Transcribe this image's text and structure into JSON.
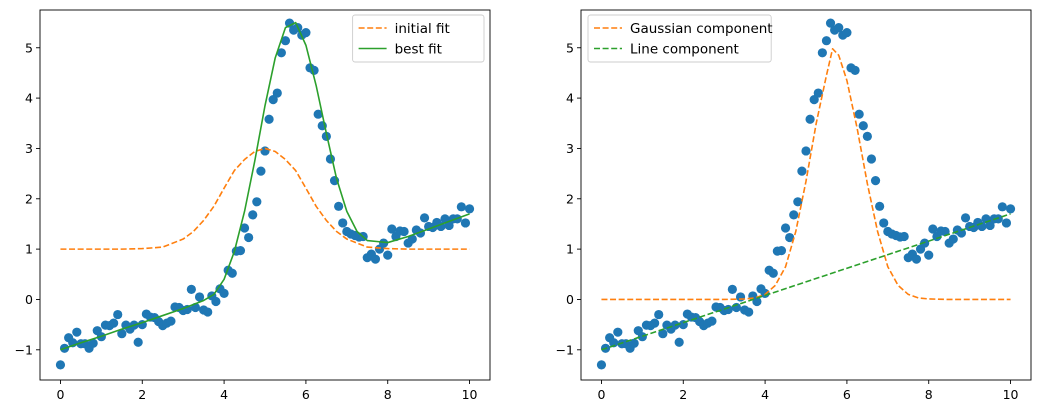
{
  "chart_data": [
    {
      "type": "scatter",
      "title": "",
      "xlabel": "",
      "ylabel": "",
      "xlim": [
        -0.5,
        10.5
      ],
      "ylim": [
        -1.6,
        5.75
      ],
      "xticks": [
        0,
        2,
        4,
        6,
        8,
        10
      ],
      "yticks": [
        -1,
        0,
        1,
        2,
        3,
        4,
        5
      ],
      "xtick_labels": [
        "0",
        "2",
        "4",
        "6",
        "8",
        "10"
      ],
      "ytick_labels": [
        "−1",
        "0",
        "1",
        "2",
        "3",
        "4",
        "5"
      ],
      "legend_position": "upper right",
      "grid": false,
      "points": {
        "color": "#1f77b4",
        "x": [
          0.0,
          0.1,
          0.2,
          0.3,
          0.4,
          0.5,
          0.6,
          0.7,
          0.8,
          0.9,
          1.0,
          1.1,
          1.2,
          1.3,
          1.4,
          1.5,
          1.6,
          1.7,
          1.8,
          1.9,
          2.0,
          2.1,
          2.2,
          2.3,
          2.4,
          2.5,
          2.6,
          2.7,
          2.8,
          2.9,
          3.0,
          3.1,
          3.2,
          3.3,
          3.4,
          3.5,
          3.6,
          3.7,
          3.8,
          3.9,
          4.0,
          4.1,
          4.2,
          4.3,
          4.4,
          4.5,
          4.6,
          4.7,
          4.8,
          4.9,
          5.0,
          5.1,
          5.2,
          5.3,
          5.4,
          5.5,
          5.6,
          5.7,
          5.8,
          5.9,
          6.0,
          6.1,
          6.2,
          6.3,
          6.4,
          6.5,
          6.6,
          6.7,
          6.8,
          6.9,
          7.0,
          7.1,
          7.2,
          7.3,
          7.4,
          7.5,
          7.6,
          7.7,
          7.8,
          7.9,
          8.0,
          8.1,
          8.2,
          8.3,
          8.4,
          8.5,
          8.6,
          8.7,
          8.8,
          8.9,
          9.0,
          9.1,
          9.2,
          9.3,
          9.4,
          9.5,
          9.6,
          9.7,
          9.8,
          9.9,
          10.0
        ],
        "y": [
          -1.3,
          -0.97,
          -0.76,
          -0.86,
          -0.65,
          -0.88,
          -0.88,
          -0.97,
          -0.87,
          -0.62,
          -0.74,
          -0.51,
          -0.52,
          -0.47,
          -0.3,
          -0.68,
          -0.51,
          -0.59,
          -0.51,
          -0.85,
          -0.5,
          -0.29,
          -0.35,
          -0.36,
          -0.44,
          -0.52,
          -0.47,
          -0.43,
          -0.15,
          -0.16,
          -0.22,
          -0.2,
          0.2,
          -0.16,
          0.05,
          -0.21,
          -0.25,
          0.07,
          -0.04,
          0.21,
          0.12,
          0.58,
          0.52,
          0.96,
          0.97,
          1.42,
          1.23,
          1.68,
          1.94,
          2.55,
          2.95,
          3.58,
          3.97,
          4.1,
          4.9,
          5.14,
          5.49,
          5.35,
          5.4,
          5.25,
          5.3,
          4.6,
          4.55,
          3.68,
          3.45,
          3.24,
          2.79,
          2.36,
          1.85,
          1.52,
          1.35,
          1.3,
          1.27,
          1.24,
          1.25,
          0.83,
          0.9,
          0.8,
          1.0,
          1.12,
          0.88,
          1.4,
          1.25,
          1.36,
          1.35,
          1.12,
          1.2,
          1.38,
          1.32,
          1.62,
          1.45,
          1.43,
          1.53,
          1.45,
          1.6,
          1.47,
          1.6,
          1.6,
          1.84,
          1.52,
          1.8
        ]
      },
      "series": [
        {
          "name": "initial fit",
          "color": "#ff7f0e",
          "style": "dashed",
          "x": [
            0.0,
            0.5,
            1.0,
            1.5,
            2.0,
            2.5,
            3.0,
            3.25,
            3.5,
            3.75,
            4.0,
            4.25,
            4.5,
            4.75,
            5.0,
            5.25,
            5.5,
            5.75,
            6.0,
            6.25,
            6.5,
            6.75,
            7.0,
            7.5,
            8.0,
            8.5,
            9.0,
            9.5,
            10.0
          ],
          "y": [
            1.0,
            1.0,
            1.0,
            1.0,
            1.01,
            1.04,
            1.2,
            1.35,
            1.57,
            1.85,
            2.21,
            2.56,
            2.78,
            2.94,
            3.0,
            2.94,
            2.78,
            2.56,
            2.21,
            1.85,
            1.57,
            1.35,
            1.2,
            1.04,
            1.01,
            1.0,
            1.0,
            1.0,
            1.0
          ]
        },
        {
          "name": "best fit",
          "color": "#2ca02c",
          "style": "solid",
          "x": [
            0.0,
            0.5,
            1.0,
            1.5,
            2.0,
            2.5,
            3.0,
            3.5,
            3.75,
            4.0,
            4.25,
            4.5,
            4.75,
            5.0,
            5.25,
            5.5,
            5.75,
            6.0,
            6.25,
            6.5,
            6.75,
            7.0,
            7.25,
            7.5,
            8.0,
            8.5,
            9.0,
            9.5,
            10.0
          ],
          "y": [
            -1.0,
            -0.86,
            -0.73,
            -0.59,
            -0.46,
            -0.32,
            -0.18,
            -0.02,
            0.1,
            0.4,
            0.95,
            1.75,
            2.75,
            3.85,
            4.8,
            5.4,
            5.5,
            5.05,
            4.25,
            3.3,
            2.4,
            1.75,
            1.35,
            1.17,
            1.13,
            1.25,
            1.4,
            1.55,
            1.7
          ]
        }
      ]
    },
    {
      "type": "scatter",
      "title": "",
      "xlabel": "",
      "ylabel": "",
      "xlim": [
        -0.5,
        10.5
      ],
      "ylim": [
        -1.6,
        5.75
      ],
      "xticks": [
        0,
        2,
        4,
        6,
        8,
        10
      ],
      "yticks": [
        -1,
        0,
        1,
        2,
        3,
        4,
        5
      ],
      "xtick_labels": [
        "0",
        "2",
        "4",
        "6",
        "8",
        "10"
      ],
      "ytick_labels": [
        "−1",
        "0",
        "1",
        "2",
        "3",
        "4",
        "5"
      ],
      "legend_position": "upper left",
      "grid": false,
      "points": {
        "color": "#1f77b4",
        "x": [
          0.0,
          0.1,
          0.2,
          0.3,
          0.4,
          0.5,
          0.6,
          0.7,
          0.8,
          0.9,
          1.0,
          1.1,
          1.2,
          1.3,
          1.4,
          1.5,
          1.6,
          1.7,
          1.8,
          1.9,
          2.0,
          2.1,
          2.2,
          2.3,
          2.4,
          2.5,
          2.6,
          2.7,
          2.8,
          2.9,
          3.0,
          3.1,
          3.2,
          3.3,
          3.4,
          3.5,
          3.6,
          3.7,
          3.8,
          3.9,
          4.0,
          4.1,
          4.2,
          4.3,
          4.4,
          4.5,
          4.6,
          4.7,
          4.8,
          4.9,
          5.0,
          5.1,
          5.2,
          5.3,
          5.4,
          5.5,
          5.6,
          5.7,
          5.8,
          5.9,
          6.0,
          6.1,
          6.2,
          6.3,
          6.4,
          6.5,
          6.6,
          6.7,
          6.8,
          6.9,
          7.0,
          7.1,
          7.2,
          7.3,
          7.4,
          7.5,
          7.6,
          7.7,
          7.8,
          7.9,
          8.0,
          8.1,
          8.2,
          8.3,
          8.4,
          8.5,
          8.6,
          8.7,
          8.8,
          8.9,
          9.0,
          9.1,
          9.2,
          9.3,
          9.4,
          9.5,
          9.6,
          9.7,
          9.8,
          9.9,
          10.0
        ],
        "y": [
          -1.3,
          -0.97,
          -0.76,
          -0.86,
          -0.65,
          -0.88,
          -0.88,
          -0.97,
          -0.87,
          -0.62,
          -0.74,
          -0.51,
          -0.52,
          -0.47,
          -0.3,
          -0.68,
          -0.51,
          -0.59,
          -0.51,
          -0.85,
          -0.5,
          -0.29,
          -0.35,
          -0.36,
          -0.44,
          -0.52,
          -0.47,
          -0.43,
          -0.15,
          -0.16,
          -0.22,
          -0.2,
          0.2,
          -0.16,
          0.05,
          -0.21,
          -0.25,
          0.07,
          -0.04,
          0.21,
          0.12,
          0.58,
          0.52,
          0.96,
          0.97,
          1.42,
          1.23,
          1.68,
          1.94,
          2.55,
          2.95,
          3.58,
          3.97,
          4.1,
          4.9,
          5.14,
          5.49,
          5.35,
          5.4,
          5.25,
          5.3,
          4.6,
          4.55,
          3.68,
          3.45,
          3.24,
          2.79,
          2.36,
          1.85,
          1.52,
          1.35,
          1.3,
          1.27,
          1.24,
          1.25,
          0.83,
          0.9,
          0.8,
          1.0,
          1.12,
          0.88,
          1.4,
          1.25,
          1.36,
          1.35,
          1.12,
          1.2,
          1.38,
          1.32,
          1.62,
          1.45,
          1.43,
          1.53,
          1.45,
          1.6,
          1.47,
          1.6,
          1.6,
          1.84,
          1.52,
          1.8
        ]
      },
      "series": [
        {
          "name": "Gaussian component",
          "color": "#ff7f0e",
          "style": "dashed",
          "x": [
            0.0,
            1.0,
            2.0,
            3.0,
            3.5,
            3.75,
            4.0,
            4.25,
            4.5,
            4.75,
            5.0,
            5.25,
            5.5,
            5.65,
            5.8,
            6.0,
            6.25,
            6.5,
            6.75,
            7.0,
            7.25,
            7.5,
            7.75,
            8.0,
            8.5,
            9.0,
            10.0
          ],
          "y": [
            0.0,
            0.0,
            0.0,
            0.0,
            0.01,
            0.03,
            0.1,
            0.28,
            0.65,
            1.35,
            2.35,
            3.5,
            4.45,
            4.98,
            4.85,
            4.35,
            3.4,
            2.3,
            1.35,
            0.65,
            0.28,
            0.1,
            0.03,
            0.01,
            0.0,
            0.0,
            0.0
          ]
        },
        {
          "name": "Line component",
          "color": "#2ca02c",
          "style": "dashed",
          "x": [
            0.0,
            10.0
          ],
          "y": [
            -1.0,
            1.7
          ]
        }
      ]
    }
  ]
}
